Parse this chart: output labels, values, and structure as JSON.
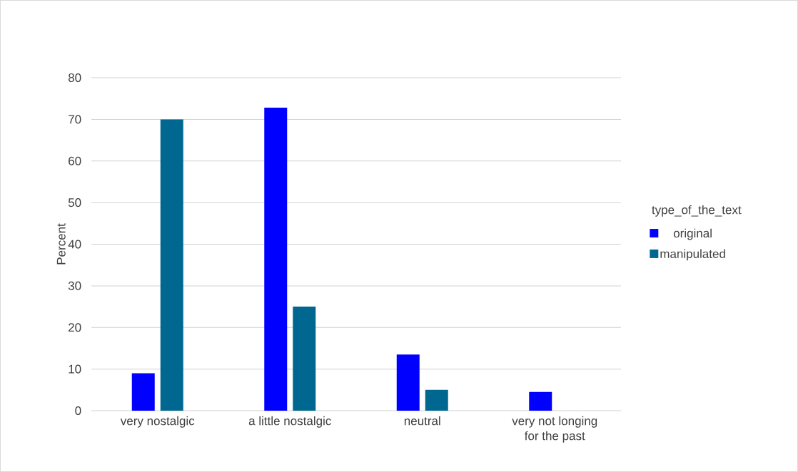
{
  "chart_data": {
    "type": "bar",
    "ylabel": "Percent",
    "legend_title": "type_of_the_text",
    "categories": [
      "very nostalgic",
      "a little nostalgic",
      "neutral",
      "very not longing for the past"
    ],
    "series": [
      {
        "name": "original",
        "color": "#0000ff",
        "values": [
          9,
          72.8,
          13.5,
          4.5
        ]
      },
      {
        "name": "manipulated",
        "color": "#006890",
        "values": [
          70,
          25,
          5,
          null
        ]
      }
    ],
    "ylim": [
      0,
      80
    ],
    "yticks": [
      0,
      10,
      20,
      30,
      40,
      50,
      60,
      70,
      80
    ],
    "grid": "y",
    "legend": "right"
  }
}
